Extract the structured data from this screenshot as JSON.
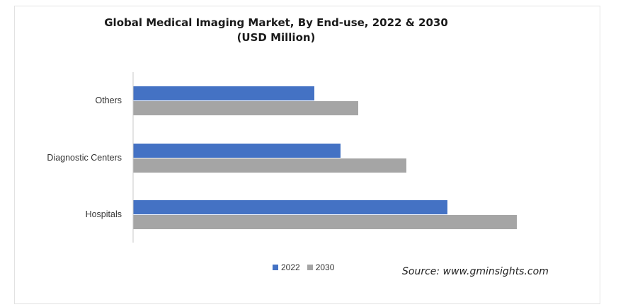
{
  "chart_data": {
    "type": "bar",
    "orientation": "horizontal",
    "title": "Global Medical Imaging Market, By End-use, 2022 & 2030",
    "subtitle": "(USD Million)",
    "categories": [
      "Others",
      "Diagnostic Centers",
      "Hospitals"
    ],
    "series": [
      {
        "name": "2022",
        "color": "#4472c4",
        "values": [
          256,
          293,
          444
        ]
      },
      {
        "name": "2030",
        "color": "#a5a5a5",
        "values": [
          318,
          386,
          542
        ]
      }
    ],
    "xlim": [
      0,
      600
    ],
    "grid": false,
    "legend": "bottom-center",
    "source": "Source: www.gminsights.com"
  }
}
